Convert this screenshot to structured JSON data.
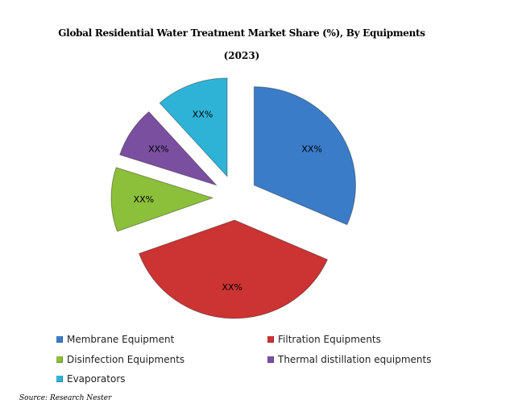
{
  "chart_data": {
    "type": "pie",
    "title": "Global Residential Water Treatment Market Share (%), By Equipments",
    "subtitle": "(2023)",
    "series": [
      {
        "name": "Membrane Equipment",
        "value": 30,
        "label": "XX%",
        "color": "#3a7cc8"
      },
      {
        "name": "Filtration Equipments",
        "value": 36,
        "label": "XX%",
        "color": "#cc3333"
      },
      {
        "name": "Disinfection Equipments",
        "value": 10,
        "label": "XX%",
        "color": "#8cbf3a"
      },
      {
        "name": "Thermal distillation equipments",
        "value": 8,
        "label": "XX%",
        "color": "#7a4fa0"
      },
      {
        "name": "Evaporators",
        "value": 11,
        "label": "XX%",
        "color": "#2eb3d6"
      }
    ],
    "legend_position": "bottom",
    "exploded": true
  },
  "source": "Source: Research Nester"
}
